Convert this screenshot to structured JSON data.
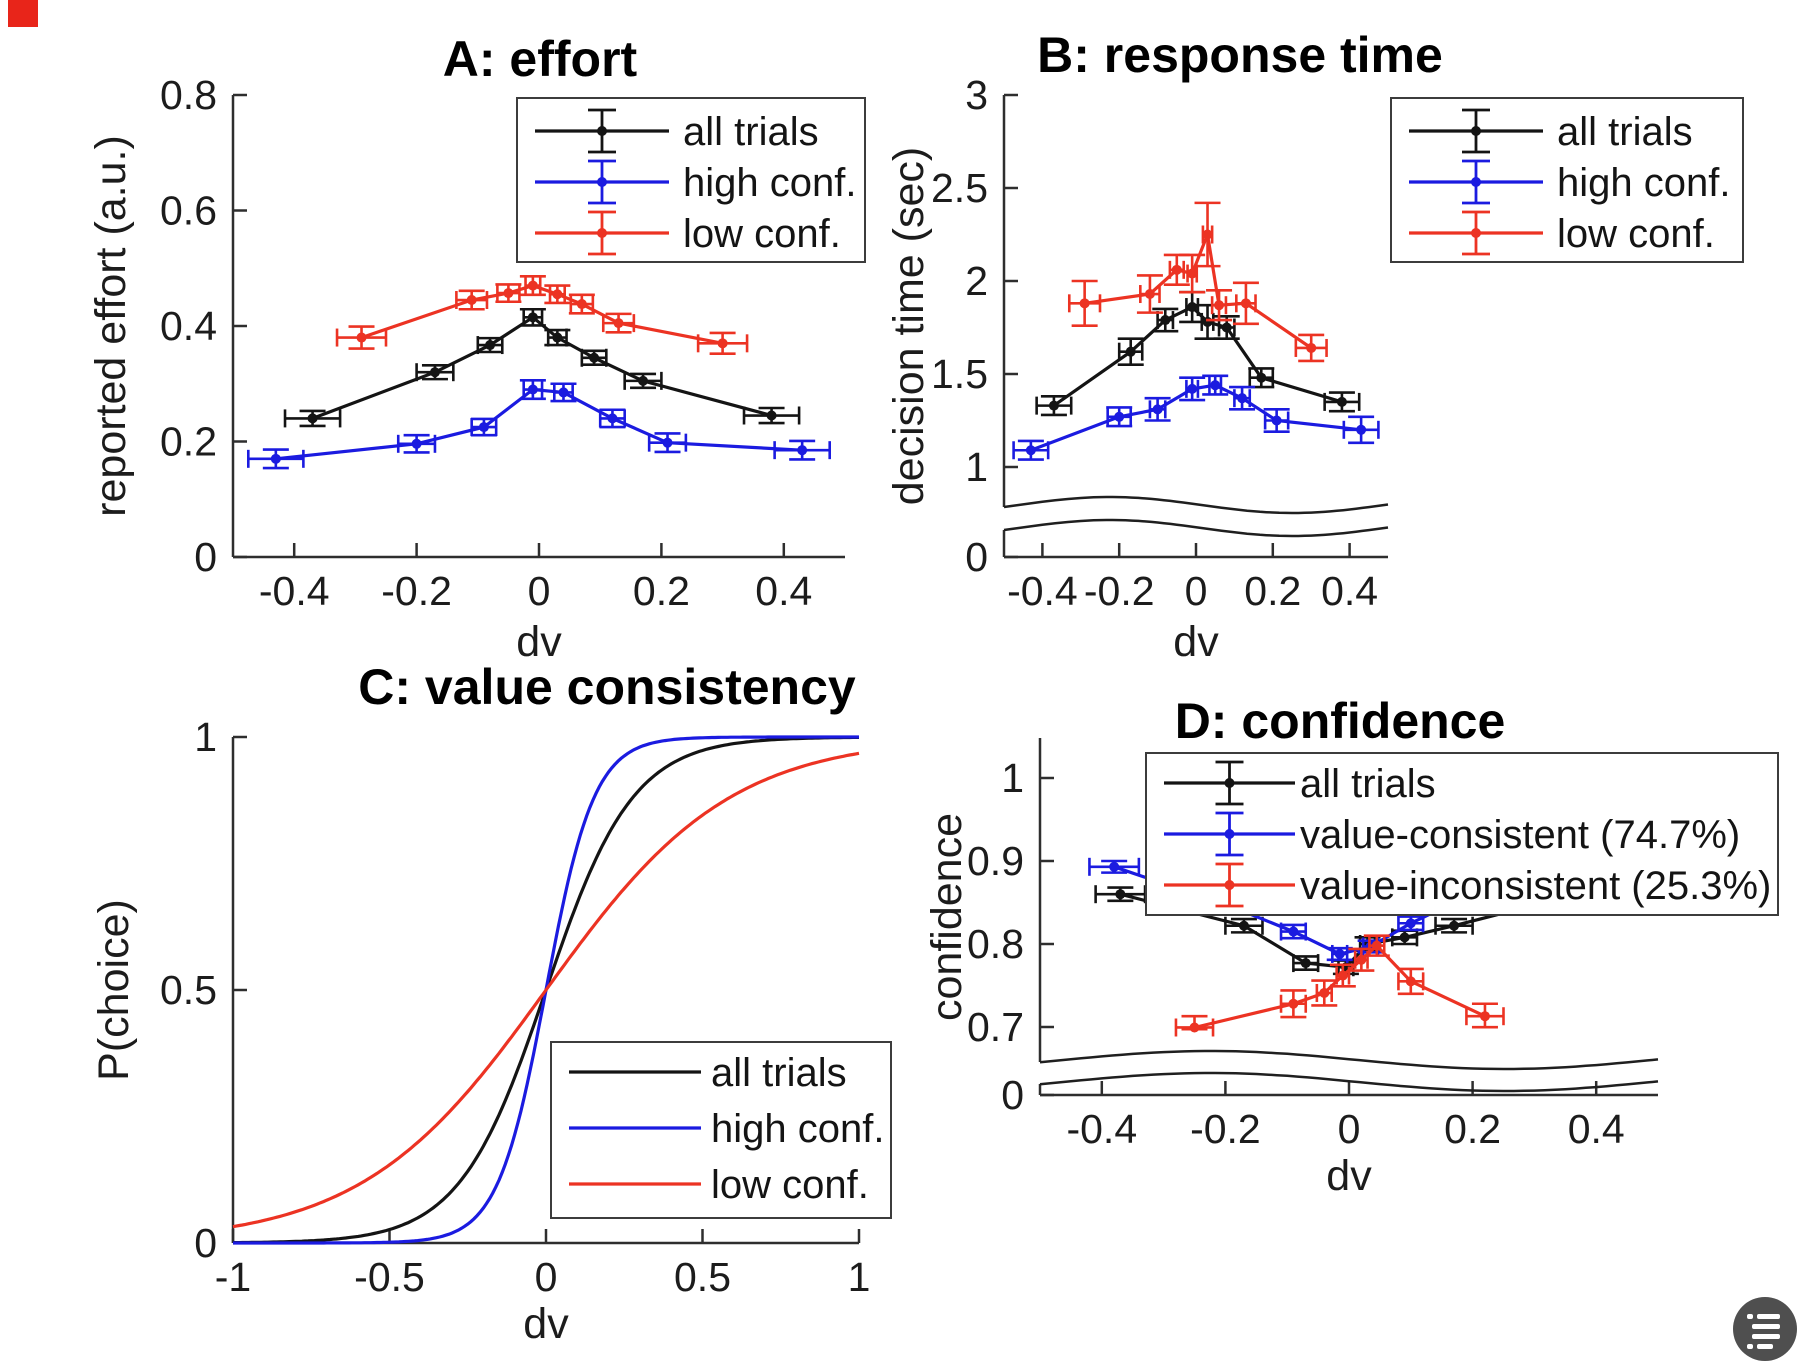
{
  "figure": {
    "background": "#ffffff",
    "corner_marker_color": "#e8251a",
    "watermark_icon": "document-scan-icon",
    "watermark_color": "#4f4f4f",
    "axis_color": "#2e2e2e",
    "text_color": "#1c1c1c"
  },
  "chart_data": [
    {
      "id": "A",
      "type": "line",
      "title": "A: effort",
      "xlabel": "dv",
      "ylabel": "reported effort (a.u.)",
      "xlim": [
        -0.5,
        0.5
      ],
      "xticks": [
        -0.4,
        -0.2,
        0,
        0.2,
        0.4
      ],
      "xtick_labels": [
        "-0.4",
        "-0.2",
        "0",
        "0.2",
        "0.4"
      ],
      "ylim": [
        0,
        0.8
      ],
      "yticks": [
        0,
        0.2,
        0.4,
        0.6,
        0.8
      ],
      "ytick_labels": [
        "0",
        "0.2",
        "0.4",
        "0.6",
        "0.8"
      ],
      "y_axis_break": false,
      "legend": {
        "position": "top-right",
        "swatch": "errorbar",
        "entries": [
          "all trials",
          "high conf.",
          "low conf."
        ]
      },
      "series": [
        {
          "name": "all trials",
          "color": "#141414",
          "x": [
            -0.37,
            -0.17,
            -0.08,
            -0.01,
            0.03,
            0.09,
            0.17,
            0.38
          ],
          "y": [
            0.24,
            0.32,
            0.367,
            0.415,
            0.38,
            0.345,
            0.305,
            0.245
          ],
          "yerr": [
            0.013,
            0.012,
            0.012,
            0.014,
            0.013,
            0.012,
            0.012,
            0.013
          ],
          "xerr": [
            0.045,
            0.03,
            0.02,
            0.015,
            0.015,
            0.02,
            0.03,
            0.045
          ]
        },
        {
          "name": "high conf.",
          "color": "#1b1be0",
          "x": [
            -0.43,
            -0.2,
            -0.09,
            -0.01,
            0.04,
            0.12,
            0.21,
            0.43
          ],
          "y": [
            0.17,
            0.196,
            0.225,
            0.29,
            0.285,
            0.24,
            0.198,
            0.185
          ],
          "yerr": [
            0.016,
            0.015,
            0.014,
            0.016,
            0.015,
            0.015,
            0.016,
            0.016
          ],
          "xerr": [
            0.045,
            0.03,
            0.02,
            0.015,
            0.015,
            0.02,
            0.03,
            0.045
          ]
        },
        {
          "name": "low conf.",
          "color": "#ec3323",
          "x": [
            -0.29,
            -0.11,
            -0.05,
            -0.01,
            0.03,
            0.07,
            0.13,
            0.3
          ],
          "y": [
            0.38,
            0.445,
            0.457,
            0.47,
            0.455,
            0.438,
            0.405,
            0.37
          ],
          "yerr": [
            0.019,
            0.016,
            0.015,
            0.016,
            0.015,
            0.016,
            0.016,
            0.018
          ],
          "xerr": [
            0.04,
            0.025,
            0.018,
            0.012,
            0.012,
            0.018,
            0.025,
            0.04
          ]
        }
      ]
    },
    {
      "id": "B",
      "type": "line",
      "title": "B: response time",
      "xlabel": "dv",
      "ylabel": "decision time (sec)",
      "xlim": [
        -0.5,
        0.5
      ],
      "xticks": [
        -0.4,
        -0.2,
        0,
        0.2,
        0.4
      ],
      "xtick_labels": [
        "-0.4",
        "-0.2",
        "0",
        "0.2",
        "0.4"
      ],
      "ylim": [
        0,
        3
      ],
      "yticks": [
        0,
        1,
        1.5,
        2,
        2.5,
        3
      ],
      "ytick_labels": [
        "0",
        "1",
        "1.5",
        "2",
        "2.5",
        "3"
      ],
      "y_axis_break": true,
      "y_break_between": [
        0,
        1
      ],
      "legend": {
        "position": "top-right",
        "swatch": "errorbar",
        "entries": [
          "all trials",
          "high conf.",
          "low conf."
        ]
      },
      "series": [
        {
          "name": "all trials",
          "color": "#141414",
          "x": [
            -0.37,
            -0.17,
            -0.08,
            -0.01,
            0.03,
            0.08,
            0.17,
            0.38
          ],
          "y": [
            1.33,
            1.62,
            1.79,
            1.86,
            1.78,
            1.75,
            1.48,
            1.35
          ],
          "yerr": [
            0.05,
            0.07,
            0.06,
            0.08,
            0.09,
            0.06,
            0.05,
            0.05
          ],
          "xerr": [
            0.045,
            0.03,
            0.02,
            0.015,
            0.015,
            0.02,
            0.03,
            0.045
          ]
        },
        {
          "name": "high conf.",
          "color": "#1b1be0",
          "x": [
            -0.43,
            -0.2,
            -0.1,
            -0.01,
            0.05,
            0.12,
            0.21,
            0.43
          ],
          "y": [
            1.09,
            1.27,
            1.31,
            1.42,
            1.44,
            1.37,
            1.25,
            1.2
          ],
          "yerr": [
            0.05,
            0.05,
            0.06,
            0.06,
            0.05,
            0.06,
            0.06,
            0.07
          ],
          "xerr": [
            0.045,
            0.03,
            0.02,
            0.015,
            0.015,
            0.02,
            0.03,
            0.045
          ]
        },
        {
          "name": "low conf.",
          "color": "#ec3323",
          "x": [
            -0.29,
            -0.12,
            -0.05,
            -0.01,
            0.03,
            0.06,
            0.13,
            0.3
          ],
          "y": [
            1.88,
            1.93,
            2.06,
            2.04,
            2.25,
            1.87,
            1.88,
            1.64
          ],
          "yerr": [
            0.12,
            0.1,
            0.08,
            0.1,
            0.17,
            0.08,
            0.11,
            0.07
          ],
          "xerr": [
            0.04,
            0.025,
            0.018,
            0.012,
            0.012,
            0.018,
            0.025,
            0.04
          ]
        }
      ]
    },
    {
      "id": "C",
      "type": "line",
      "title": "C: value consistency",
      "xlabel": "dv",
      "ylabel": "P(choice)",
      "xlim": [
        -1,
        1
      ],
      "xticks": [
        -1,
        -0.5,
        0,
        0.5,
        1
      ],
      "xtick_labels": [
        "-1",
        "-0.5",
        "0",
        "0.5",
        "1"
      ],
      "ylim": [
        0,
        1
      ],
      "yticks": [
        0,
        0.5,
        1
      ],
      "ytick_labels": [
        "0",
        "0.5",
        "1"
      ],
      "y_axis_break": false,
      "legend": {
        "position": "bottom-right",
        "swatch": "line",
        "entries": [
          "all trials",
          "high conf.",
          "low conf."
        ]
      },
      "series": [
        {
          "name": "all trials",
          "color": "#141414",
          "curve": "sigmoid",
          "k": 7.2
        },
        {
          "name": "high conf.",
          "color": "#1b1be0",
          "curve": "sigmoid",
          "k": 13
        },
        {
          "name": "low conf.",
          "color": "#ec3323",
          "curve": "sigmoid",
          "k": 3.4
        }
      ]
    },
    {
      "id": "D",
      "type": "line",
      "title": "D: confidence",
      "xlabel": "dv",
      "ylabel": "confidence",
      "xlim": [
        -0.5,
        0.5
      ],
      "xticks": [
        -0.4,
        -0.2,
        0,
        0.2,
        0.4
      ],
      "xtick_labels": [
        "-0.4",
        "-0.2",
        "0",
        "0.2",
        "0.4"
      ],
      "ylim": [
        0,
        1.05
      ],
      "yticks": [
        0,
        0.7,
        0.8,
        0.9,
        1
      ],
      "ytick_labels": [
        "0",
        "0.7",
        "0.8",
        "0.9",
        "1"
      ],
      "y_axis_break": true,
      "y_break_between": [
        0,
        0.7
      ],
      "legend": {
        "position": "top",
        "swatch": "errorbar",
        "entries": [
          "all trials",
          "value-consistent (74.7%)",
          "value-inconsistent (25.3%)"
        ]
      },
      "series": [
        {
          "name": "all trials",
          "color": "#141414",
          "x": [
            -0.37,
            -0.17,
            -0.07,
            -0.005,
            0.03,
            0.09,
            0.17,
            0.38
          ],
          "y": [
            0.86,
            0.822,
            0.777,
            0.772,
            0.8,
            0.808,
            0.822,
            0.862
          ],
          "yerr": [
            0.008,
            0.008,
            0.008,
            0.008,
            0.008,
            0.008,
            0.008,
            0.008
          ],
          "xerr": [
            0.04,
            0.03,
            0.02,
            0.012,
            0.012,
            0.02,
            0.03,
            0.04
          ]
        },
        {
          "name": "value-consistent (74.7%)",
          "color": "#1b1be0",
          "x": [
            -0.38,
            -0.19,
            -0.09,
            -0.015,
            0.035,
            0.1,
            0.19,
            0.42
          ],
          "y": [
            0.893,
            0.845,
            0.815,
            0.788,
            0.797,
            0.825,
            0.857,
            0.88
          ],
          "yerr": [
            0.007,
            0.007,
            0.008,
            0.007,
            0.007,
            0.008,
            0.008,
            0.008
          ],
          "xerr": [
            0.04,
            0.03,
            0.02,
            0.012,
            0.012,
            0.02,
            0.03,
            0.04
          ]
        },
        {
          "name": "value-inconsistent (25.3%)",
          "color": "#ec3323",
          "x": [
            -0.25,
            -0.09,
            -0.04,
            -0.01,
            0.02,
            0.045,
            0.1,
            0.22
          ],
          "y": [
            0.695,
            0.728,
            0.741,
            0.762,
            0.781,
            0.798,
            0.755,
            0.713
          ],
          "yerr": [
            0.018,
            0.016,
            0.015,
            0.013,
            0.013,
            0.012,
            0.015,
            0.015
          ],
          "xerr": [
            0.03,
            0.02,
            0.012,
            0.01,
            0.01,
            0.012,
            0.02,
            0.03
          ]
        }
      ]
    }
  ]
}
